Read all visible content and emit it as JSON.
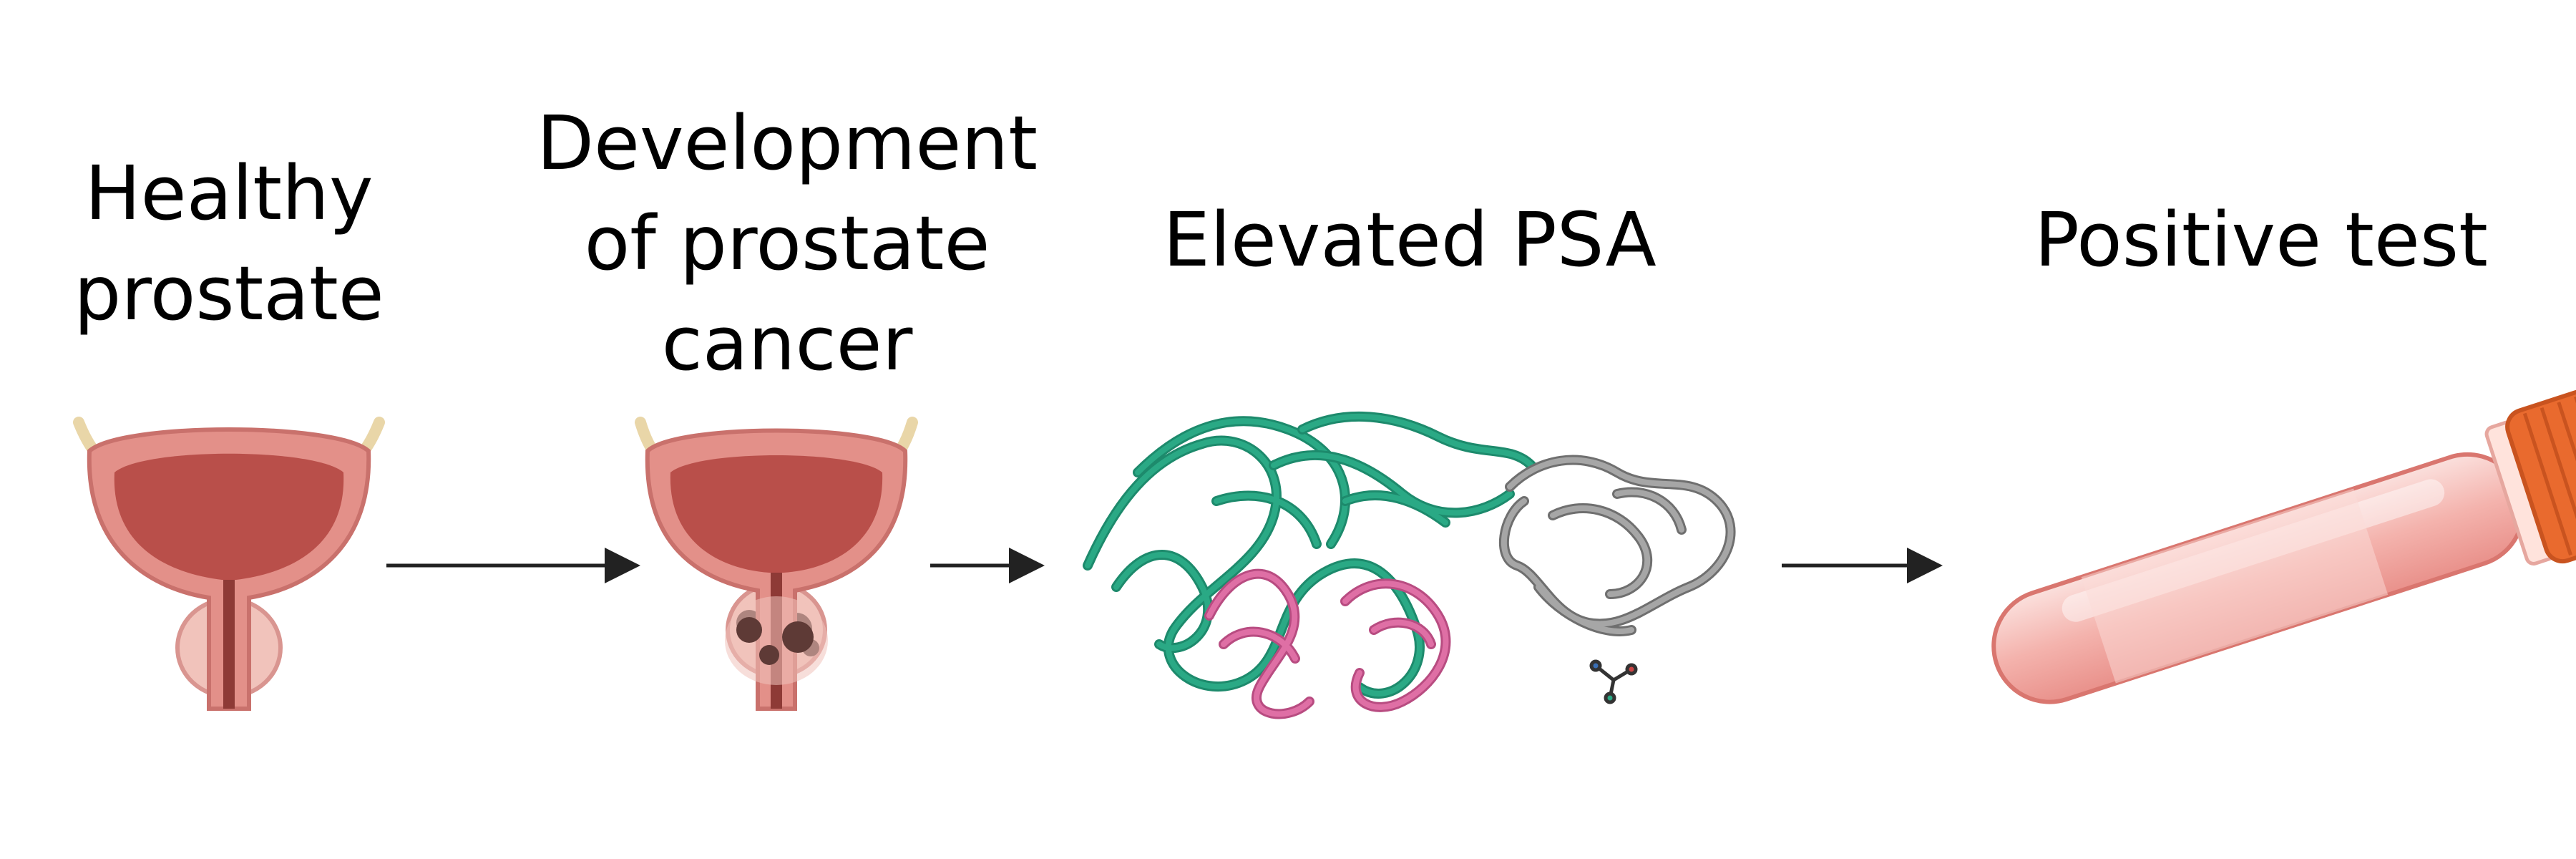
{
  "steps": [
    {
      "id": "healthy",
      "label": "Healthy\nprostate",
      "icon": "healthy-prostate-icon"
    },
    {
      "id": "cancer",
      "label": "Development\nof prostate\ncancer",
      "icon": "cancerous-prostate-icon"
    },
    {
      "id": "psa",
      "label": "Elevated PSA",
      "icon": "psa-protein-structure-icon"
    },
    {
      "id": "test",
      "label": "Positive test",
      "icon": "blood-sample-tube-icon"
    }
  ],
  "colors": {
    "bladder_wall": "#e39089",
    "bladder_inner": "#b94f4a",
    "prostate": "#f1c3bb",
    "tumor": "#5e3a36",
    "protein_green": "#2aa985",
    "protein_pink": "#df6fa5",
    "protein_gray": "#999999",
    "tube_cap": "#e96a2e",
    "tube_body": "#f5c0bb"
  }
}
